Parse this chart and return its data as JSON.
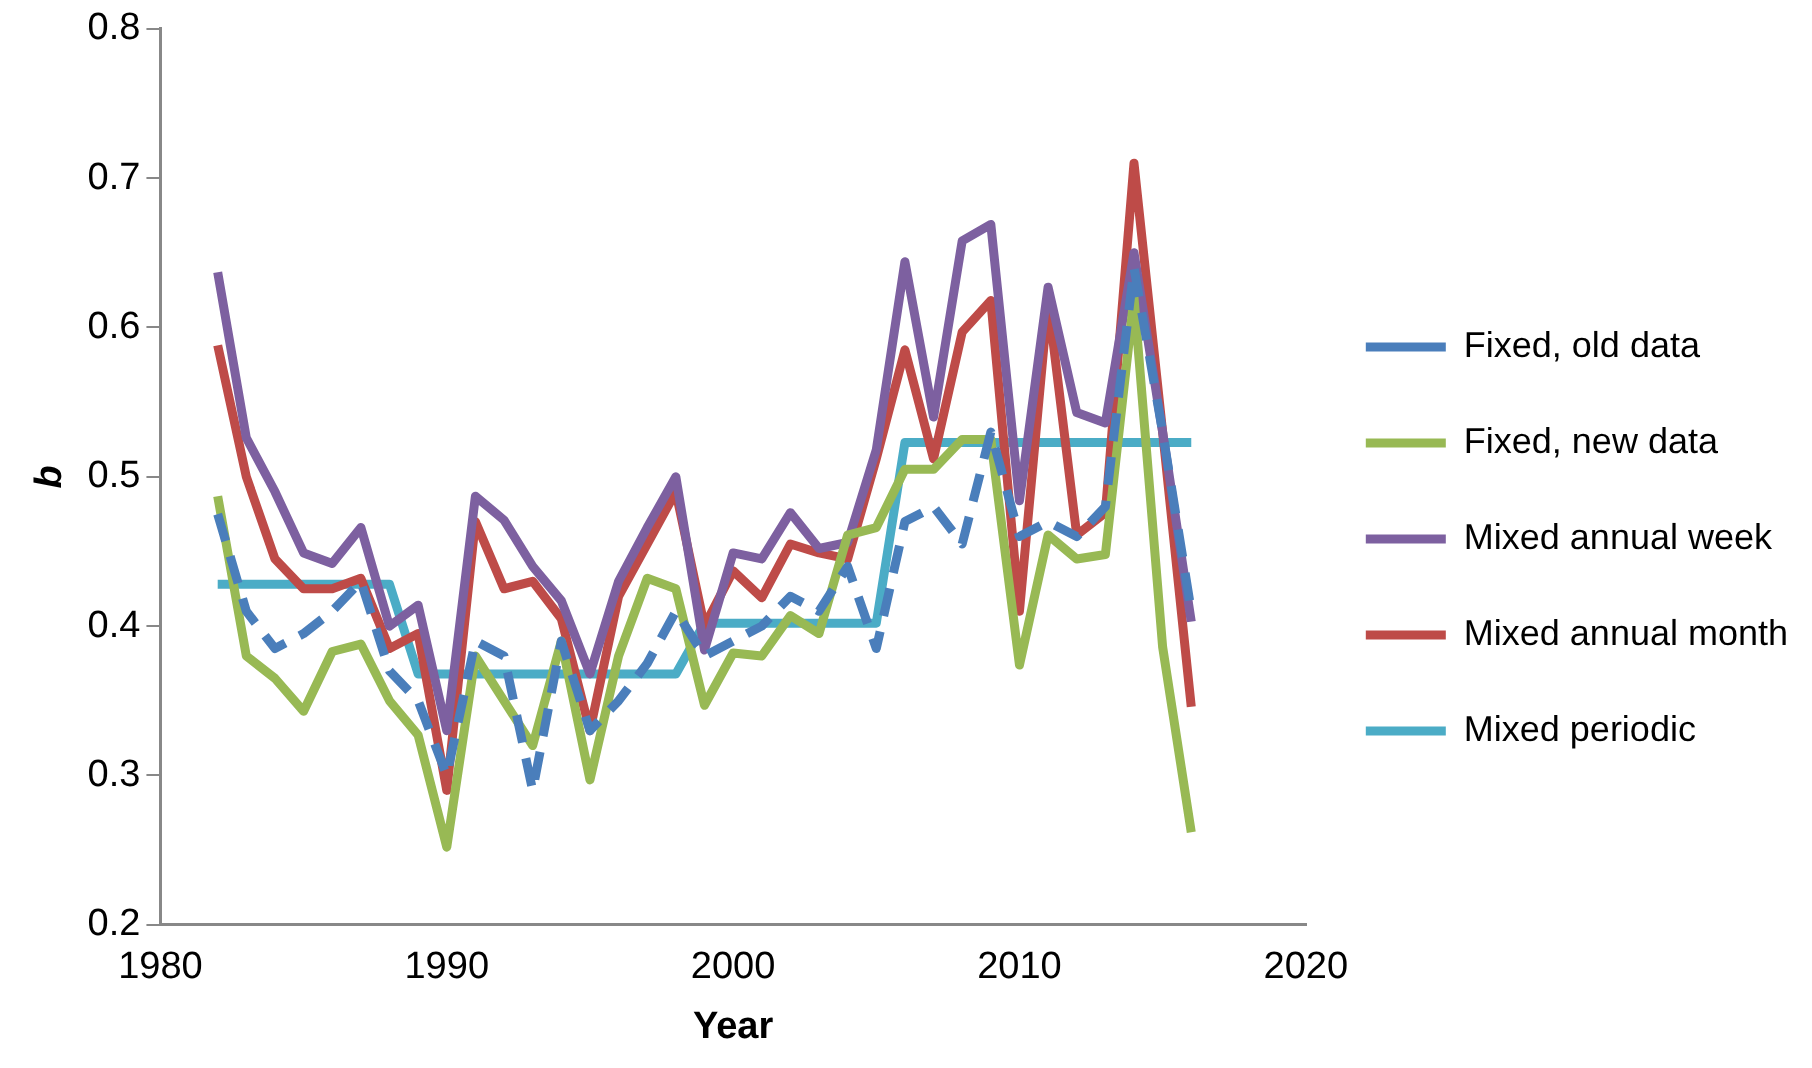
{
  "chart_data": {
    "type": "line",
    "xlabel": "Year",
    "ylabel": "b",
    "x": [
      1982,
      1983,
      1984,
      1985,
      1986,
      1987,
      1988,
      1989,
      1990,
      1991,
      1992,
      1993,
      1994,
      1995,
      1996,
      1997,
      1998,
      1999,
      2000,
      2001,
      2002,
      2003,
      2004,
      2005,
      2006,
      2007,
      2008,
      2009,
      2010,
      2011,
      2012,
      2013,
      2014,
      2015,
      2016
    ],
    "xlim": [
      1980,
      2020
    ],
    "xticks": [
      1980,
      1990,
      2000,
      2010,
      2020
    ],
    "ylim": [
      0.2,
      0.8
    ],
    "yticks": [
      0.2,
      0.3,
      0.4,
      0.5,
      0.6,
      0.7,
      0.8
    ],
    "grid": false,
    "legend": "right",
    "marker": "none",
    "series": [
      {
        "name": "Fixed, old data",
        "color": "#4a7ebb",
        "line_style": "dashed",
        "values": [
          0.475,
          0.41,
          0.385,
          0.395,
          0.41,
          0.43,
          0.37,
          0.35,
          0.3,
          0.39,
          0.38,
          0.29,
          0.39,
          0.33,
          0.35,
          0.375,
          0.41,
          0.38,
          0.39,
          0.4,
          0.42,
          0.41,
          0.44,
          0.385,
          0.47,
          0.48,
          0.455,
          0.53,
          0.46,
          0.47,
          0.46,
          0.48,
          0.64,
          0.53,
          0.41
        ]
      },
      {
        "name": "Fixed, new data",
        "color": "#98b954",
        "line_style": "solid",
        "values": [
          0.487,
          0.38,
          0.365,
          0.343,
          0.383,
          0.388,
          0.35,
          0.327,
          0.252,
          0.38,
          0.35,
          0.32,
          0.39,
          0.297,
          0.38,
          0.432,
          0.425,
          0.347,
          0.382,
          0.38,
          0.407,
          0.395,
          0.461,
          0.466,
          0.505,
          0.505,
          0.525,
          0.525,
          0.374,
          0.461,
          0.445,
          0.448,
          0.62,
          0.386,
          0.262
        ]
      },
      {
        "name": "Mixed annual week",
        "color": "#7d60a0",
        "line_style": "solid",
        "values": [
          0.637,
          0.526,
          0.49,
          0.449,
          0.442,
          0.466,
          0.4,
          0.414,
          0.33,
          0.487,
          0.471,
          0.44,
          0.417,
          0.368,
          0.43,
          0.466,
          0.5,
          0.384,
          0.449,
          0.445,
          0.476,
          0.452,
          0.456,
          0.518,
          0.644,
          0.54,
          0.658,
          0.669,
          0.484,
          0.627,
          0.543,
          0.536,
          0.65,
          0.53,
          0.403
        ]
      },
      {
        "name": "Mixed annual month",
        "color": "#be4b48",
        "line_style": "solid",
        "values": [
          0.588,
          0.5,
          0.445,
          0.425,
          0.425,
          0.432,
          0.385,
          0.395,
          0.29,
          0.47,
          0.425,
          0.43,
          0.405,
          0.33,
          0.42,
          0.455,
          0.49,
          0.4,
          0.437,
          0.419,
          0.455,
          0.449,
          0.445,
          0.512,
          0.585,
          0.512,
          0.597,
          0.618,
          0.41,
          0.618,
          0.461,
          0.476,
          0.71,
          0.53,
          0.346
        ]
      },
      {
        "name": "Mixed periodic",
        "color": "#4bacc6",
        "line_style": "solid",
        "values": [
          0.428,
          0.428,
          0.428,
          0.428,
          0.428,
          0.428,
          0.428,
          0.368,
          0.368,
          0.368,
          0.368,
          0.368,
          0.368,
          0.368,
          0.368,
          0.368,
          0.368,
          0.402,
          0.402,
          0.402,
          0.402,
          0.402,
          0.402,
          0.402,
          0.523,
          0.523,
          0.523,
          0.523,
          0.523,
          0.523,
          0.523,
          0.523,
          0.523,
          0.523,
          0.523
        ]
      }
    ]
  }
}
